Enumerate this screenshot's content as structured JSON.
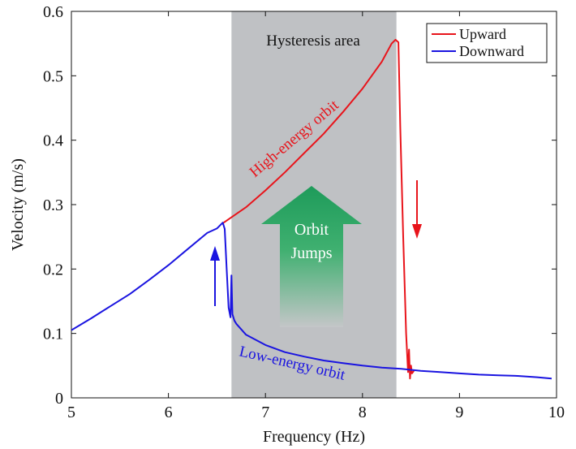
{
  "chart_data": {
    "type": "line",
    "xlabel": "Frequency (Hz)",
    "ylabel": "Velocity (m/s)",
    "xlim": [
      5,
      10
    ],
    "ylim": [
      0,
      0.6
    ],
    "xticks": [
      5,
      6,
      7,
      8,
      9,
      10
    ],
    "yticks": [
      0,
      0.1,
      0.2,
      0.3,
      0.4,
      0.5,
      0.6
    ],
    "xtick_labels": [
      "5",
      "6",
      "7",
      "8",
      "9",
      "10"
    ],
    "ytick_labels": [
      "0",
      "0.1",
      "0.2",
      "0.3",
      "0.4",
      "0.5",
      "0.6"
    ],
    "grid": false,
    "legend": {
      "placement": "top-right",
      "entries": [
        {
          "name": "Upward",
          "color": "#e8141b"
        },
        {
          "name": "Downward",
          "color": "#1a14e0"
        }
      ]
    },
    "shaded_region": {
      "label": "Hysteresis area",
      "x": [
        6.65,
        8.35
      ],
      "color": "#bfc1c4"
    },
    "series": [
      {
        "name": "Upward",
        "color": "#e8141b",
        "x": [
          6.55,
          6.8,
          7.0,
          7.2,
          7.4,
          7.6,
          7.8,
          8.0,
          8.2,
          8.3,
          8.34,
          8.37,
          8.39,
          8.42,
          8.45,
          8.47,
          8.48,
          8.49,
          8.5,
          8.51,
          8.53
        ],
        "y": [
          0.27,
          0.296,
          0.322,
          0.35,
          0.38,
          0.41,
          0.444,
          0.48,
          0.522,
          0.55,
          0.556,
          0.552,
          0.42,
          0.25,
          0.1,
          0.04,
          0.075,
          0.03,
          0.05,
          0.038,
          0.042
        ]
      },
      {
        "name": "Downward",
        "color": "#1a14e0",
        "x": [
          5.0,
          5.2,
          5.4,
          5.6,
          5.8,
          6.0,
          6.2,
          6.4,
          6.5,
          6.56,
          6.58,
          6.6,
          6.62,
          6.64,
          6.65,
          6.66,
          6.68,
          6.7,
          6.8,
          7.0,
          7.2,
          7.4,
          7.6,
          7.8,
          8.0,
          8.2,
          8.4,
          8.6,
          8.8,
          9.0,
          9.2,
          9.4,
          9.6,
          9.8,
          9.95
        ],
        "y": [
          0.105,
          0.123,
          0.142,
          0.161,
          0.183,
          0.206,
          0.231,
          0.256,
          0.263,
          0.272,
          0.262,
          0.2,
          0.14,
          0.125,
          0.19,
          0.13,
          0.12,
          0.115,
          0.098,
          0.082,
          0.071,
          0.064,
          0.058,
          0.054,
          0.05,
          0.047,
          0.045,
          0.042,
          0.04,
          0.038,
          0.036,
          0.035,
          0.034,
          0.032,
          0.03
        ]
      }
    ],
    "annotations": [
      {
        "text": "Hysteresis area"
      },
      {
        "text": "High-energy orbit",
        "color": "#e8141b"
      },
      {
        "text": "Low-energy orbit",
        "color": "#1a14e0"
      },
      {
        "text": "Orbit Jumps",
        "lines": [
          "Orbit",
          "Jumps"
        ],
        "color": "#ffffff"
      }
    ]
  }
}
